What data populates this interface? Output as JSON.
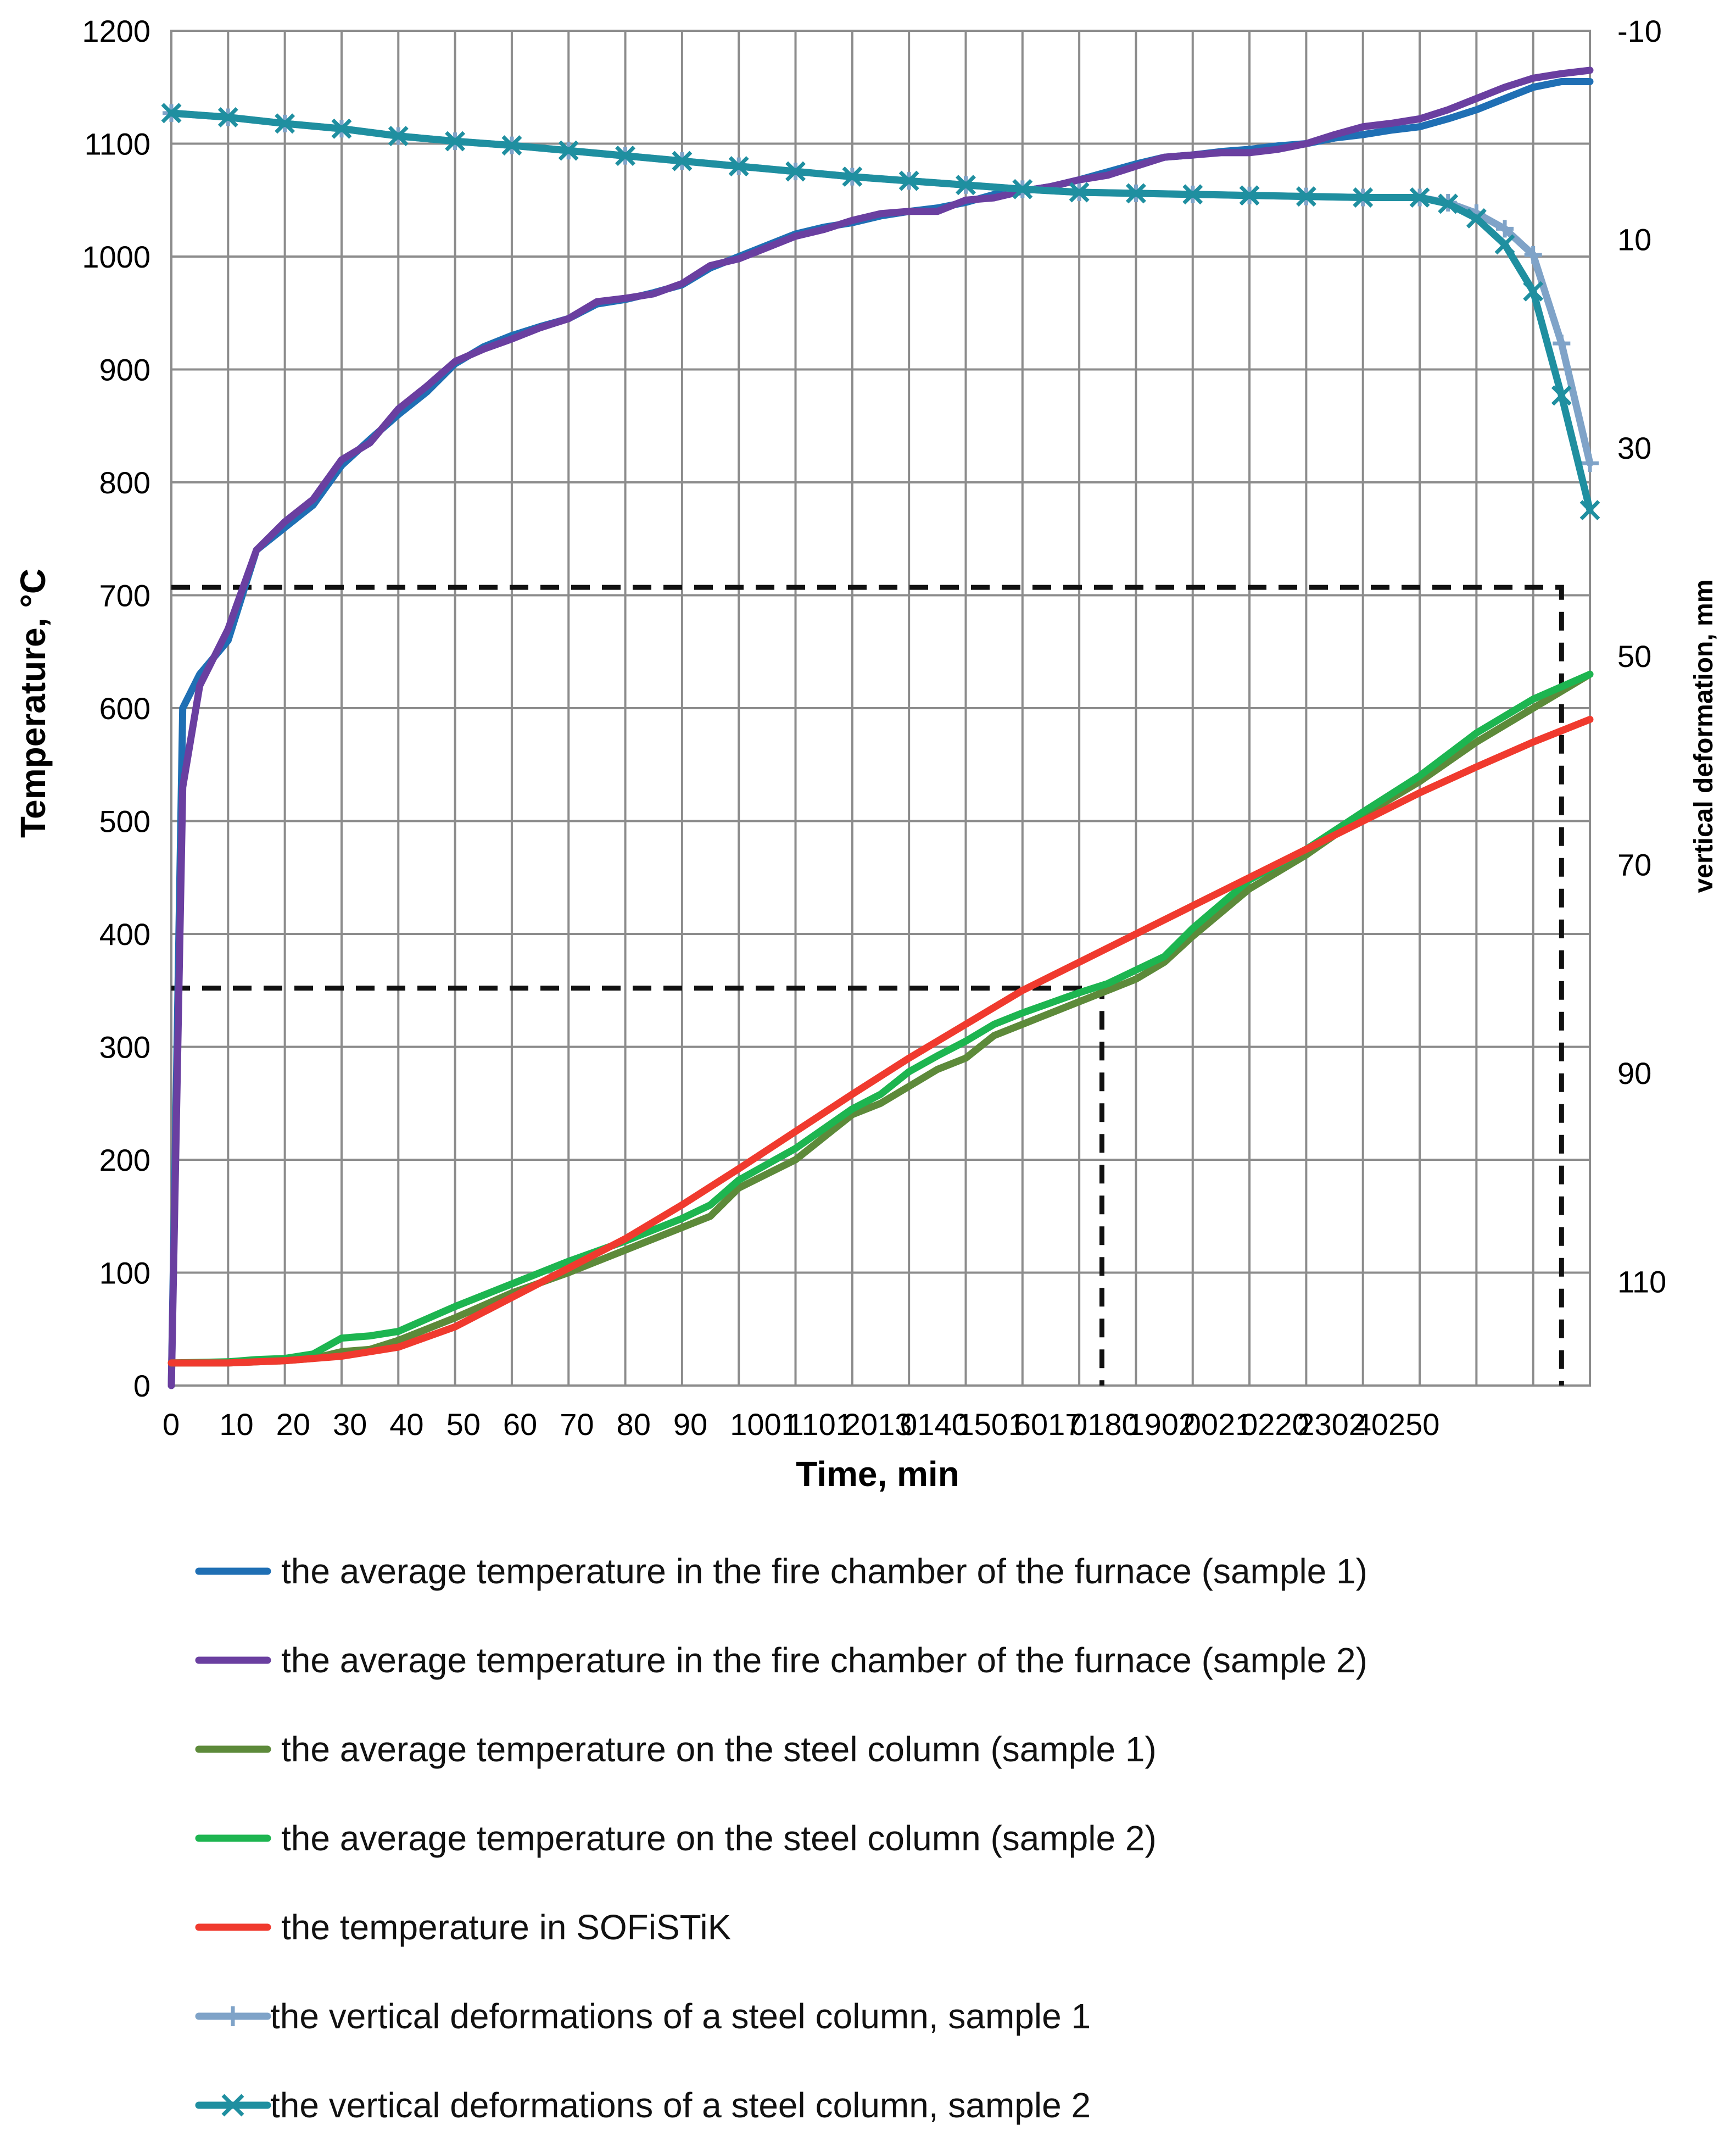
{
  "chart_data": {
    "type": "line",
    "title": "",
    "xlabel": "Time, min",
    "ylabel": "Temperature, °C",
    "y2label": "vertical deformation, mm",
    "xlim": [
      0,
      250
    ],
    "ylim": [
      0,
      1200
    ],
    "y2lim": [
      -10,
      120
    ],
    "y2_inverted": true,
    "grid": true,
    "x_ticks": [
      0,
      10,
      20,
      30,
      40,
      50,
      60,
      70,
      80,
      90,
      100,
      110,
      120,
      130,
      140,
      150,
      160,
      170,
      180,
      190,
      200,
      210,
      220,
      230,
      240,
      250
    ],
    "x_tick_labels": [
      "0",
      "10",
      "20",
      "30",
      "40",
      "50",
      "60",
      "70",
      "80",
      "90",
      "1001",
      "1101",
      "2013",
      "0140",
      "1501",
      "6017",
      "0180",
      "1902",
      "0021",
      "0220",
      "2302",
      "40250",
      "",
      "",
      "",
      ""
    ],
    "y_ticks": [
      0,
      100,
      200,
      300,
      400,
      500,
      600,
      700,
      800,
      900,
      1000,
      1100,
      1200
    ],
    "y2_ticks": [
      -10,
      10,
      30,
      50,
      70,
      90,
      110
    ],
    "legend_position": "bottom",
    "series": [
      {
        "name": "the average temperature in the fire chamber of the furnace (sample 1)",
        "axis": "left",
        "color": "#1f6fb4",
        "marker": "none",
        "points": [
          [
            0,
            0
          ],
          [
            2,
            600
          ],
          [
            5,
            630
          ],
          [
            10,
            660
          ],
          [
            15,
            740
          ],
          [
            20,
            760
          ],
          [
            25,
            780
          ],
          [
            30,
            815
          ],
          [
            35,
            838
          ],
          [
            40,
            860
          ],
          [
            45,
            880
          ],
          [
            50,
            905
          ],
          [
            55,
            920
          ],
          [
            60,
            930
          ],
          [
            65,
            938
          ],
          [
            70,
            945
          ],
          [
            75,
            958
          ],
          [
            80,
            962
          ],
          [
            85,
            968
          ],
          [
            90,
            975
          ],
          [
            95,
            990
          ],
          [
            100,
            1000
          ],
          [
            105,
            1010
          ],
          [
            110,
            1020
          ],
          [
            115,
            1026
          ],
          [
            120,
            1030
          ],
          [
            125,
            1036
          ],
          [
            130,
            1040
          ],
          [
            135,
            1043
          ],
          [
            140,
            1048
          ],
          [
            145,
            1055
          ],
          [
            150,
            1058
          ],
          [
            155,
            1062
          ],
          [
            160,
            1068
          ],
          [
            165,
            1075
          ],
          [
            170,
            1082
          ],
          [
            175,
            1088
          ],
          [
            180,
            1090
          ],
          [
            185,
            1093
          ],
          [
            190,
            1095
          ],
          [
            195,
            1098
          ],
          [
            200,
            1100
          ],
          [
            205,
            1105
          ],
          [
            210,
            1108
          ],
          [
            215,
            1112
          ],
          [
            220,
            1115
          ],
          [
            225,
            1122
          ],
          [
            230,
            1130
          ],
          [
            235,
            1140
          ],
          [
            240,
            1150
          ],
          [
            245,
            1155
          ],
          [
            250,
            1155
          ]
        ]
      },
      {
        "name": "the average temperature in the fire chamber of the furnace (sample 2)",
        "axis": "left",
        "color": "#6a3fa0",
        "marker": "none",
        "points": [
          [
            0,
            0
          ],
          [
            2,
            530
          ],
          [
            5,
            620
          ],
          [
            10,
            670
          ],
          [
            15,
            740
          ],
          [
            20,
            765
          ],
          [
            25,
            785
          ],
          [
            30,
            820
          ],
          [
            35,
            835
          ],
          [
            40,
            865
          ],
          [
            45,
            885
          ],
          [
            50,
            907
          ],
          [
            55,
            918
          ],
          [
            60,
            927
          ],
          [
            65,
            937
          ],
          [
            70,
            945
          ],
          [
            75,
            960
          ],
          [
            80,
            963
          ],
          [
            85,
            967
          ],
          [
            90,
            976
          ],
          [
            95,
            992
          ],
          [
            100,
            998
          ],
          [
            105,
            1008
          ],
          [
            110,
            1018
          ],
          [
            115,
            1024
          ],
          [
            120,
            1032
          ],
          [
            125,
            1038
          ],
          [
            130,
            1040
          ],
          [
            135,
            1040
          ],
          [
            140,
            1050
          ],
          [
            145,
            1052
          ],
          [
            150,
            1058
          ],
          [
            155,
            1062
          ],
          [
            160,
            1068
          ],
          [
            165,
            1072
          ],
          [
            170,
            1080
          ],
          [
            175,
            1088
          ],
          [
            180,
            1090
          ],
          [
            185,
            1092
          ],
          [
            190,
            1092
          ],
          [
            195,
            1095
          ],
          [
            200,
            1100
          ],
          [
            205,
            1108
          ],
          [
            210,
            1115
          ],
          [
            215,
            1118
          ],
          [
            220,
            1122
          ],
          [
            225,
            1130
          ],
          [
            230,
            1140
          ],
          [
            235,
            1150
          ],
          [
            240,
            1158
          ],
          [
            245,
            1162
          ],
          [
            250,
            1165
          ]
        ]
      },
      {
        "name": "the average temperature on the steel column (sample 1)",
        "axis": "left",
        "color": "#5d8a3a",
        "marker": "none",
        "points": [
          [
            0,
            20
          ],
          [
            10,
            20
          ],
          [
            20,
            22
          ],
          [
            25,
            24
          ],
          [
            30,
            30
          ],
          [
            35,
            32
          ],
          [
            40,
            40
          ],
          [
            50,
            60
          ],
          [
            60,
            82
          ],
          [
            70,
            100
          ],
          [
            80,
            120
          ],
          [
            90,
            140
          ],
          [
            95,
            150
          ],
          [
            100,
            175
          ],
          [
            110,
            200
          ],
          [
            120,
            240
          ],
          [
            125,
            250
          ],
          [
            130,
            265
          ],
          [
            135,
            280
          ],
          [
            140,
            290
          ],
          [
            145,
            310
          ],
          [
            150,
            320
          ],
          [
            160,
            340
          ],
          [
            165,
            350
          ],
          [
            170,
            360
          ],
          [
            175,
            375
          ],
          [
            180,
            398
          ],
          [
            190,
            440
          ],
          [
            200,
            470
          ],
          [
            210,
            505
          ],
          [
            220,
            535
          ],
          [
            230,
            570
          ],
          [
            240,
            600
          ],
          [
            250,
            630
          ]
        ]
      },
      {
        "name": "the average temperature on the steel column (sample 2)",
        "axis": "left",
        "color": "#1db550",
        "marker": "none",
        "points": [
          [
            0,
            20
          ],
          [
            10,
            21
          ],
          [
            15,
            23
          ],
          [
            20,
            24
          ],
          [
            25,
            28
          ],
          [
            30,
            42
          ],
          [
            35,
            44
          ],
          [
            40,
            48
          ],
          [
            50,
            70
          ],
          [
            60,
            90
          ],
          [
            70,
            110
          ],
          [
            80,
            128
          ],
          [
            90,
            148
          ],
          [
            95,
            160
          ],
          [
            100,
            182
          ],
          [
            110,
            210
          ],
          [
            120,
            245
          ],
          [
            125,
            258
          ],
          [
            130,
            278
          ],
          [
            135,
            292
          ],
          [
            140,
            305
          ],
          [
            145,
            320
          ],
          [
            150,
            330
          ],
          [
            160,
            348
          ],
          [
            165,
            356
          ],
          [
            170,
            368
          ],
          [
            175,
            380
          ],
          [
            180,
            405
          ],
          [
            190,
            448
          ],
          [
            200,
            475
          ],
          [
            210,
            508
          ],
          [
            220,
            540
          ],
          [
            230,
            578
          ],
          [
            240,
            608
          ],
          [
            250,
            630
          ]
        ]
      },
      {
        "name": "the temperature in SOFiSTiK",
        "axis": "left",
        "color": "#f03a2e",
        "marker": "none",
        "points": [
          [
            0,
            20
          ],
          [
            10,
            20
          ],
          [
            20,
            22
          ],
          [
            30,
            26
          ],
          [
            40,
            34
          ],
          [
            50,
            52
          ],
          [
            60,
            78
          ],
          [
            70,
            104
          ],
          [
            80,
            130
          ],
          [
            90,
            160
          ],
          [
            100,
            192
          ],
          [
            110,
            225
          ],
          [
            120,
            258
          ],
          [
            130,
            290
          ],
          [
            140,
            320
          ],
          [
            150,
            350
          ],
          [
            160,
            375
          ],
          [
            170,
            400
          ],
          [
            180,
            425
          ],
          [
            190,
            450
          ],
          [
            200,
            475
          ],
          [
            210,
            500
          ],
          [
            220,
            525
          ],
          [
            230,
            548
          ],
          [
            240,
            570
          ],
          [
            250,
            590
          ]
        ]
      },
      {
        "name": "the vertical deformations of a steel column, sample 1",
        "axis": "right",
        "color": "#7fa3c8",
        "marker": "plus",
        "points": [
          [
            0,
            -2.1
          ],
          [
            10,
            -1.7
          ],
          [
            20,
            -1.1
          ],
          [
            30,
            -0.6
          ],
          [
            40,
            0.1
          ],
          [
            50,
            0.6
          ],
          [
            60,
            1.0
          ],
          [
            70,
            1.5
          ],
          [
            80,
            2.0
          ],
          [
            90,
            2.5
          ],
          [
            100,
            3.0
          ],
          [
            110,
            3.5
          ],
          [
            120,
            4.0
          ],
          [
            130,
            4.4
          ],
          [
            140,
            4.8
          ],
          [
            150,
            5.2
          ],
          [
            160,
            5.5
          ],
          [
            170,
            5.6
          ],
          [
            180,
            5.7
          ],
          [
            190,
            5.8
          ],
          [
            200,
            5.9
          ],
          [
            210,
            6.0
          ],
          [
            220,
            6.0
          ],
          [
            225,
            6.5
          ],
          [
            230,
            7.5
          ],
          [
            235,
            9.0
          ],
          [
            240,
            11.5
          ],
          [
            245,
            20.0
          ],
          [
            250,
            31.5
          ]
        ]
      },
      {
        "name": "the vertical deformations of a steel column, sample 2",
        "axis": "right",
        "color": "#1f8fa0",
        "marker": "x",
        "points": [
          [
            0,
            -2.1
          ],
          [
            10,
            -1.7
          ],
          [
            20,
            -1.1
          ],
          [
            30,
            -0.6
          ],
          [
            40,
            0.1
          ],
          [
            50,
            0.6
          ],
          [
            60,
            1.0
          ],
          [
            70,
            1.5
          ],
          [
            80,
            2.0
          ],
          [
            90,
            2.5
          ],
          [
            100,
            3.0
          ],
          [
            110,
            3.5
          ],
          [
            120,
            4.0
          ],
          [
            130,
            4.4
          ],
          [
            140,
            4.8
          ],
          [
            150,
            5.2
          ],
          [
            160,
            5.5
          ],
          [
            170,
            5.6
          ],
          [
            180,
            5.7
          ],
          [
            190,
            5.8
          ],
          [
            200,
            5.9
          ],
          [
            210,
            6.0
          ],
          [
            220,
            6.0
          ],
          [
            225,
            6.6
          ],
          [
            230,
            8.0
          ],
          [
            235,
            10.5
          ],
          [
            240,
            15.0
          ],
          [
            245,
            25.0
          ],
          [
            250,
            36.0
          ]
        ]
      }
    ],
    "annotations": [
      {
        "type": "dashed-guide",
        "points": [
          [
            0,
            352
          ],
          [
            164,
            352
          ],
          [
            164,
            0
          ]
        ]
      },
      {
        "type": "dashed-guide",
        "points": [
          [
            0,
            707
          ],
          [
            245,
            707
          ],
          [
            245,
            0
          ]
        ]
      }
    ]
  }
}
